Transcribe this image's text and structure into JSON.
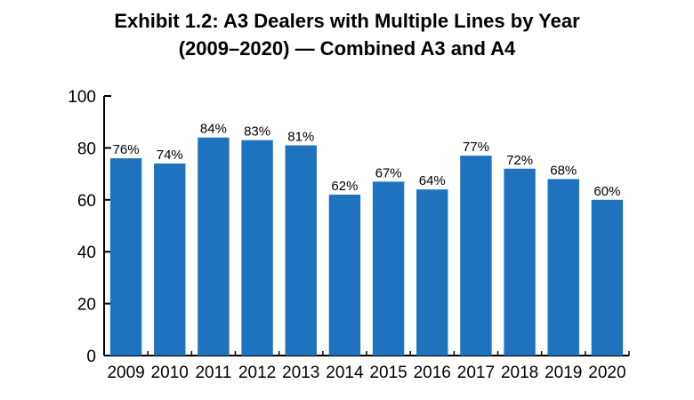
{
  "chart_data": {
    "type": "bar",
    "title_line1": "Exhibit 1.2: A3 Dealers with Multiple Lines by Year",
    "title_line2": "(2009–2020) — Combined A3 and A4",
    "categories": [
      "2009",
      "2010",
      "2011",
      "2012",
      "2013",
      "2014",
      "2015",
      "2016",
      "2017",
      "2018",
      "2019",
      "2020"
    ],
    "values": [
      76,
      74,
      84,
      83,
      81,
      62,
      67,
      64,
      77,
      72,
      68,
      60
    ],
    "data_labels": [
      "76%",
      "74%",
      "84%",
      "83%",
      "81%",
      "62%",
      "67%",
      "64%",
      "77%",
      "72%",
      "68%",
      "60%"
    ],
    "yticks": [
      "0",
      "20",
      "40",
      "60",
      "80",
      "100"
    ],
    "ylim": [
      0,
      100
    ],
    "xlabel": "",
    "ylabel": "",
    "grid": false,
    "legend": "none",
    "bar_color": "#1f72bd"
  }
}
